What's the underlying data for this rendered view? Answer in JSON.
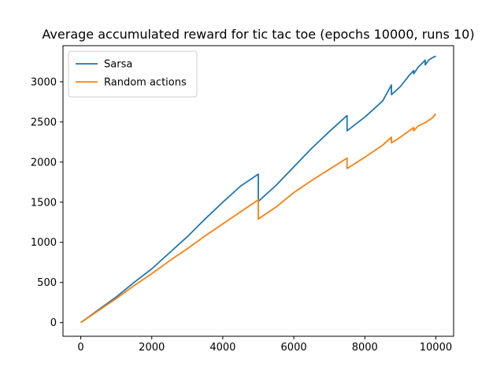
{
  "chart_data": {
    "type": "line",
    "title": "Average accumulated reward for tic tac toe (epochs 10000, runs 10)",
    "xlabel": "",
    "ylabel": "",
    "xlim": [
      -500,
      10500
    ],
    "ylim": [
      -170,
      3450
    ],
    "xticks": [
      0,
      2000,
      4000,
      6000,
      8000,
      10000
    ],
    "yticks": [
      0,
      500,
      1000,
      1500,
      2000,
      2500,
      3000
    ],
    "grid": false,
    "legend": {
      "placement": "top-left"
    },
    "series": [
      {
        "name": "Sarsa",
        "color": "#1f77b4",
        "x": [
          0,
          500,
          1000,
          1500,
          2000,
          2500,
          3000,
          3500,
          4000,
          4500,
          5000,
          5000,
          5500,
          6000,
          6500,
          7000,
          7500,
          7500,
          8000,
          8500,
          8750,
          8750,
          9000,
          9250,
          9375,
          9375,
          9500,
          9700,
          9700,
          9800,
          9900,
          10000
        ],
        "y": [
          0,
          160,
          320,
          500,
          670,
          870,
          1070,
          1290,
          1500,
          1700,
          1850,
          1510,
          1710,
          1940,
          2170,
          2380,
          2580,
          2390,
          2560,
          2760,
          2960,
          2840,
          2940,
          3080,
          3140,
          3100,
          3180,
          3270,
          3210,
          3270,
          3300,
          3320
        ]
      },
      {
        "name": "Random actions",
        "color": "#ff7f0e",
        "x": [
          0,
          500,
          1000,
          1500,
          2000,
          2500,
          3000,
          3500,
          4000,
          4500,
          5000,
          5000,
          5500,
          6000,
          6500,
          7000,
          7500,
          7500,
          8000,
          8500,
          8750,
          8750,
          9000,
          9375,
          9375,
          9500,
          9700,
          9900,
          10000
        ],
        "y": [
          0,
          150,
          300,
          460,
          610,
          770,
          920,
          1080,
          1230,
          1380,
          1530,
          1290,
          1440,
          1620,
          1770,
          1910,
          2050,
          1920,
          2060,
          2210,
          2310,
          2240,
          2310,
          2430,
          2390,
          2450,
          2490,
          2550,
          2600
        ]
      }
    ]
  }
}
